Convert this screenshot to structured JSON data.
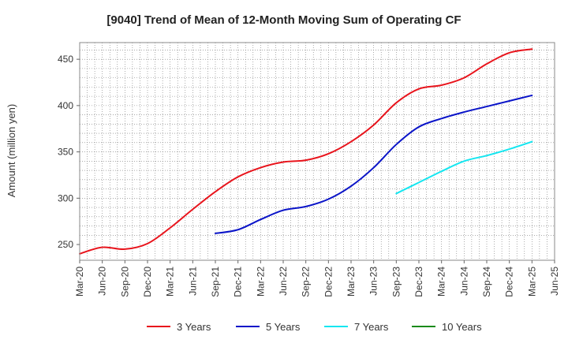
{
  "chart_data": {
    "type": "line",
    "title": "[9040]  Trend of Mean of 12-Month Moving Sum of Operating CF",
    "xlabel": "",
    "ylabel": "Amount (million yen)",
    "ylim": [
      233,
      468
    ],
    "yticks": [
      250,
      300,
      350,
      400,
      450
    ],
    "categories": [
      "Mar-20",
      "Jun-20",
      "Sep-20",
      "Dec-20",
      "Mar-21",
      "Jun-21",
      "Sep-21",
      "Dec-21",
      "Mar-22",
      "Jun-22",
      "Sep-22",
      "Dec-22",
      "Mar-23",
      "Jun-23",
      "Sep-23",
      "Dec-23",
      "Mar-24",
      "Jun-24",
      "Sep-24",
      "Dec-24",
      "Mar-25",
      "Jun-25"
    ],
    "grid": true,
    "legend_position": "bottom",
    "series": [
      {
        "name": "3 Years",
        "color": "#e8141c",
        "values": [
          240,
          247,
          245,
          251,
          268,
          288,
          307,
          323,
          333,
          339,
          341,
          348,
          361,
          379,
          403,
          418,
          422,
          430,
          445,
          457,
          461,
          null
        ]
      },
      {
        "name": "5 Years",
        "color": "#0a14c8",
        "values": [
          null,
          null,
          null,
          null,
          null,
          null,
          262,
          266,
          277,
          287,
          291,
          299,
          313,
          333,
          358,
          377,
          386,
          393,
          399,
          405,
          411,
          null
        ]
      },
      {
        "name": "7 Years",
        "color": "#14e6f0",
        "values": [
          null,
          null,
          null,
          null,
          null,
          null,
          null,
          null,
          null,
          null,
          null,
          null,
          null,
          null,
          305,
          317,
          329,
          340,
          346,
          353,
          361,
          null
        ]
      },
      {
        "name": "10 Years",
        "color": "#1a8a1a",
        "values": [
          null,
          null,
          null,
          null,
          null,
          null,
          null,
          null,
          null,
          null,
          null,
          null,
          null,
          null,
          null,
          null,
          null,
          null,
          null,
          null,
          null,
          null
        ]
      }
    ]
  }
}
